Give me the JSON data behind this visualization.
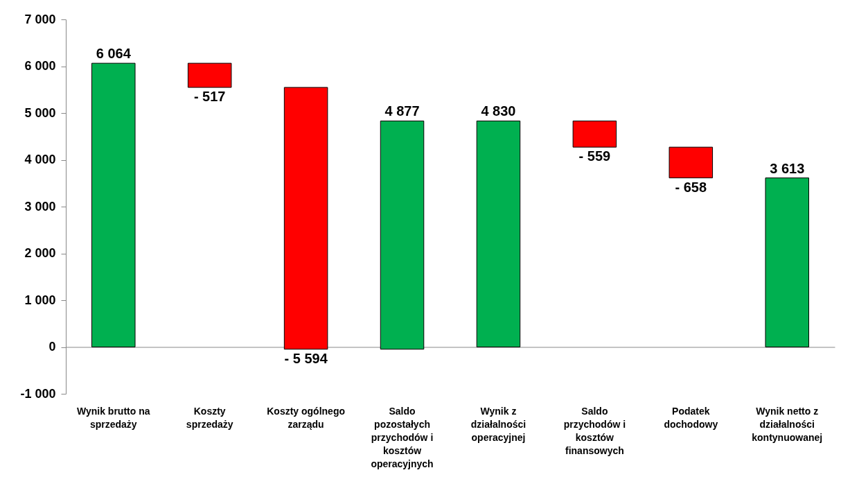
{
  "chart_data": {
    "type": "bar",
    "categories": [
      "Wynik brutto na sprzedaży",
      "Koszty sprzedaży",
      "Koszty ogólnego zarządu",
      "Saldo pozostałych przychodów i kosztów operacyjnych",
      "Wynik z działalności operacyjnej",
      "Saldo przychodów i kosztów finansowych",
      "Podatek dochodowy",
      "Wynik netto z działalności kontynuowanej"
    ],
    "values": [
      6064,
      -517,
      -5594,
      4877,
      4830,
      -559,
      -658,
      3613
    ],
    "base": [
      0,
      6064,
      5547,
      -47,
      0,
      4830,
      4271,
      0
    ],
    "colors": [
      "#00b050",
      "#ff0000",
      "#ff0000",
      "#00b050",
      "#00b050",
      "#ff0000",
      "#ff0000",
      "#00b050"
    ],
    "value_labels": [
      "6 064",
      "- 517",
      "- 5 594",
      "4 877",
      "4 830",
      "- 559",
      "- 658",
      "3 613"
    ],
    "ylim": [
      -1000,
      7000
    ],
    "yticks": [
      {
        "value": -1000,
        "label": "-1 000"
      },
      {
        "value": 0,
        "label": "0"
      },
      {
        "value": 1000,
        "label": "1 000"
      },
      {
        "value": 2000,
        "label": "2 000"
      },
      {
        "value": 3000,
        "label": "3 000"
      },
      {
        "value": 4000,
        "label": "4 000"
      },
      {
        "value": 5000,
        "label": "5 000"
      },
      {
        "value": 6000,
        "label": "6 000"
      },
      {
        "value": 7000,
        "label": "7 000"
      }
    ]
  }
}
